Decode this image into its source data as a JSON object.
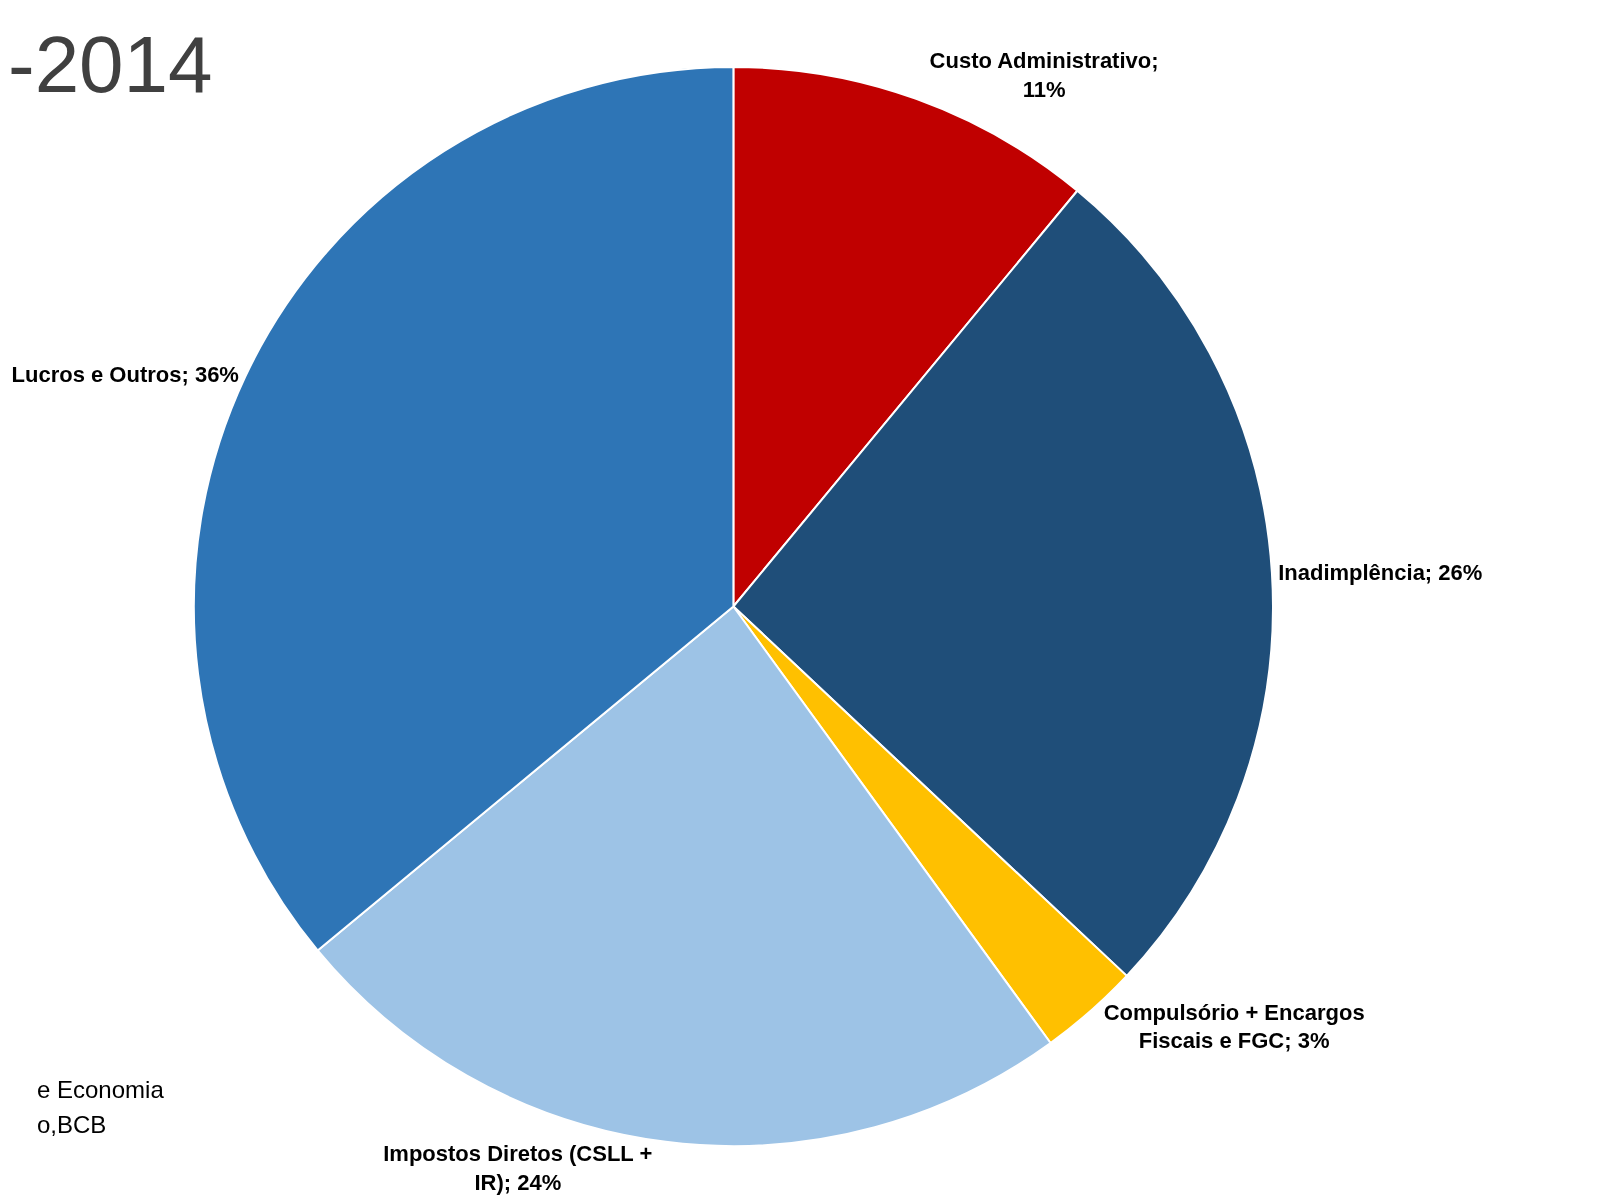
{
  "chart_data": {
    "type": "pie",
    "title": "-2014",
    "categories": [
      "Custo Administrativo; 11%",
      "Inadimplência; 26%",
      "Compulsório + Encargos Fiscais e FGC; 3%",
      "Impostos Diretos (CSLL + IR); 24%",
      "Lucros e Outros; 36%"
    ],
    "values": [
      11,
      26,
      3,
      24,
      36
    ],
    "colors": [
      "#c00000",
      "#1f4e79",
      "#ffc000",
      "#9dc3e6",
      "#2e75b6"
    ],
    "annotations": [
      "e Economia",
      "o,BCB"
    ],
    "legend": false
  }
}
